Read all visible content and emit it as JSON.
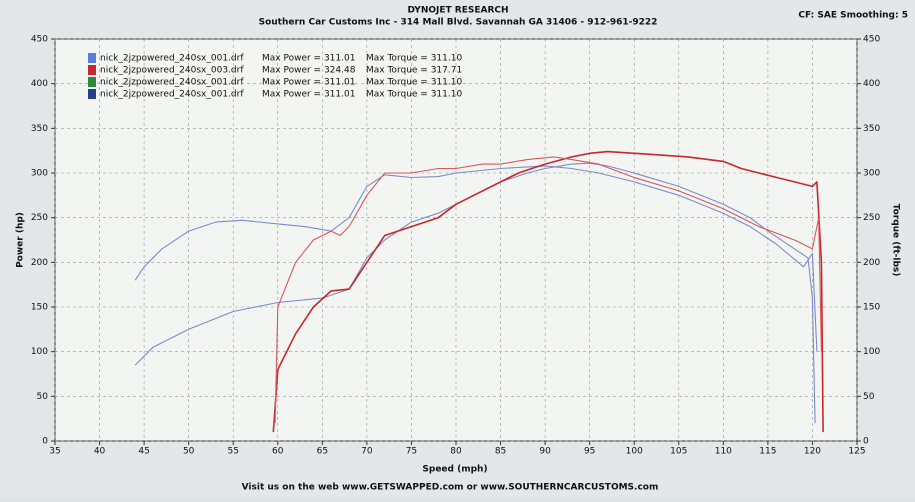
{
  "chart_data": {
    "type": "line",
    "title": "DYNOJET RESEARCH",
    "subtitle": "Southern Car Customs Inc - 314 Mall Blvd. Savannah GA 31406 - 912-961-9222",
    "settings_text": "CF: SAE  Smoothing: 5",
    "footer": "Visit us on the web www.GETSWAPPED.com or www.SOUTHERNCARCUSTOMS.com",
    "x_label": "Speed (mph)",
    "y_label": "Power (hp)",
    "y2_label": "Torque (ft-lbs)",
    "xlim": [
      35,
      125
    ],
    "xticks": [
      35,
      40,
      45,
      50,
      55,
      60,
      65,
      70,
      75,
      80,
      85,
      90,
      95,
      100,
      105,
      110,
      115,
      120,
      125
    ],
    "ylim": [
      0,
      450
    ],
    "yticks": [
      0,
      50,
      100,
      150,
      200,
      250,
      300,
      350,
      400,
      450
    ],
    "y2lim": [
      0,
      450
    ],
    "y2ticks": [
      0,
      50,
      100,
      150,
      200,
      250,
      300,
      350,
      400,
      450
    ],
    "grid": true,
    "legend_position": "top-left",
    "legend": [
      {
        "name": "nick_2jzpowered_240sx_001.drf",
        "max_power": "Max Power = 311.01",
        "max_torque": "Max Torque = 311.10",
        "color": "#5b7fd8"
      },
      {
        "name": "nick_2jzpowered_240sx_003.drf",
        "max_power": "Max Power = 324.48",
        "max_torque": "Max Torque = 317.71",
        "color": "#c8282c"
      },
      {
        "name": "nick_2jzpowered_240sx_001.drf",
        "max_power": "Max Power = 311.01",
        "max_torque": "Max Torque = 311.10",
        "color": "#2e8a3a"
      },
      {
        "name": "nick_2jzpowered_240sx_001.drf",
        "max_power": "Max Power = 311.01",
        "max_torque": "Max Torque = 311.10",
        "color": "#2a3f8a"
      }
    ],
    "series": [
      {
        "color": "#7c8cc8",
        "axis": "y",
        "x": [
          44,
          46,
          50,
          55,
          60,
          65,
          68,
          70,
          72,
          75,
          78,
          80,
          82,
          85,
          88,
          90,
          93,
          95,
          97,
          100,
          105,
          110,
          113,
          115,
          118,
          119.5,
          120,
          120.3
        ],
        "values": [
          85,
          105,
          125,
          145,
          155,
          160,
          170,
          205,
          225,
          245,
          255,
          265,
          275,
          290,
          300,
          305,
          310,
          311,
          308,
          300,
          285,
          265,
          250,
          235,
          215,
          205,
          160,
          20
        ]
      },
      {
        "color": "#7c8cc8",
        "axis": "y2",
        "x": [
          44,
          45,
          47,
          50,
          53,
          56,
          60,
          63,
          66,
          68,
          70,
          72,
          75,
          78,
          80,
          85,
          90,
          93,
          96,
          100,
          105,
          110,
          113,
          116,
          119,
          120,
          120.5
        ],
        "values": [
          180,
          195,
          215,
          235,
          245,
          247,
          243,
          240,
          235,
          250,
          285,
          298,
          295,
          296,
          300,
          305,
          308,
          305,
          300,
          290,
          275,
          255,
          240,
          220,
          195,
          210,
          100
        ]
      },
      {
        "color": "#c8282c",
        "axis": "y",
        "x": [
          59.5,
          60,
          62,
          64,
          66,
          68,
          70,
          72,
          75,
          78,
          80,
          82,
          85,
          87,
          90,
          93,
          95,
          97,
          100,
          103,
          106,
          110,
          112,
          114,
          116,
          118,
          120,
          120.5,
          121,
          121.2
        ],
        "values": [
          10,
          80,
          120,
          150,
          168,
          170,
          200,
          230,
          240,
          250,
          265,
          275,
          290,
          300,
          310,
          318,
          322,
          324,
          322,
          320,
          318,
          313,
          305,
          300,
          295,
          290,
          285,
          290,
          200,
          10
        ]
      },
      {
        "color": "#d8585c",
        "axis": "y2",
        "x": [
          59.7,
          60,
          62,
          64,
          66,
          67,
          68,
          70,
          72,
          75,
          78,
          80,
          83,
          85,
          88,
          91,
          93,
          96,
          100,
          105,
          110,
          114,
          118,
          120,
          120.7,
          121
        ],
        "values": [
          20,
          150,
          200,
          225,
          235,
          230,
          240,
          275,
          300,
          300,
          305,
          305,
          310,
          310,
          315,
          318,
          315,
          310,
          295,
          280,
          260,
          240,
          225,
          215,
          250,
          100
        ]
      }
    ]
  }
}
